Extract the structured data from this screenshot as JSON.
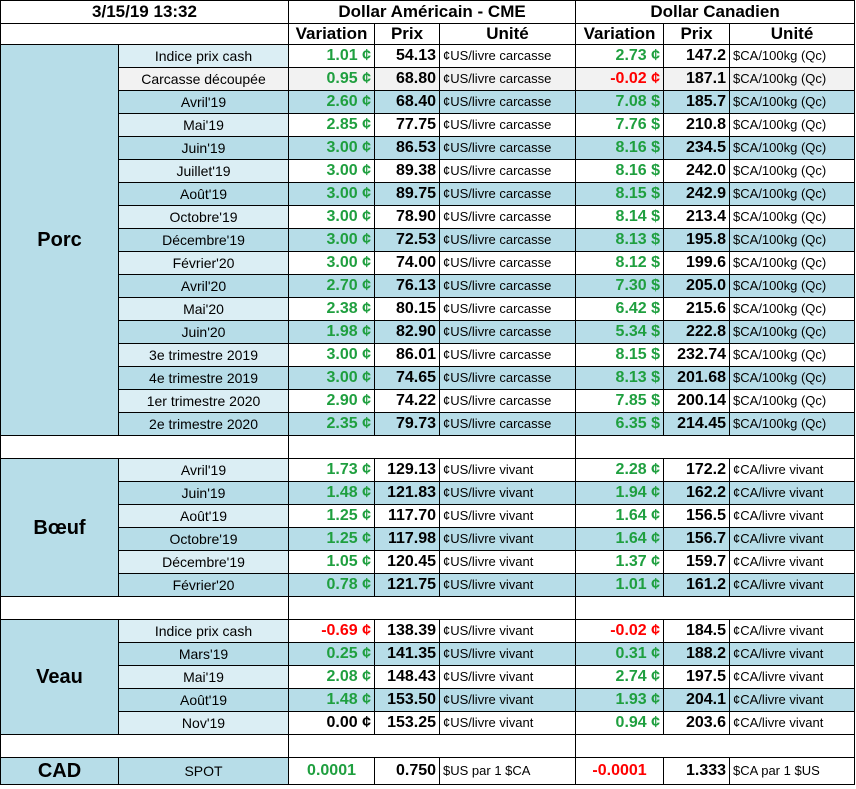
{
  "header": {
    "datetime": "3/15/19 13:32",
    "usd_title": "Dollar Américain - CME",
    "cad_title": "Dollar Canadien",
    "col_variation": "Variation",
    "col_prix": "Prix",
    "col_unite": "Unité"
  },
  "colors": {
    "positive": "#1f9f3f",
    "negative": "#ff0000",
    "row_dark": "#b7dde8",
    "row_light": "#ffffff"
  },
  "groups": [
    {
      "name": "Porc",
      "rows": [
        {
          "label": "Indice prix cash",
          "usd_var": "1.01 ¢",
          "usd_prix": "54.13",
          "usd_unit": "¢US/livre carcasse",
          "cad_var": "2.73 ¢",
          "cad_prix": "147.2",
          "cad_unit": "$CA/100kg (Qc)",
          "usd_sign": "pos",
          "cad_sign": "pos",
          "shade": "light"
        },
        {
          "label": "Carcasse découpée",
          "usd_var": "0.95 ¢",
          "usd_prix": "68.80",
          "usd_unit": "¢US/livre carcasse",
          "cad_var": "-0.02 ¢",
          "cad_prix": "187.1",
          "cad_unit": "$CA/100kg (Qc)",
          "usd_sign": "pos",
          "cad_sign": "neg",
          "shade": "plain"
        },
        {
          "label": "Avril'19",
          "usd_var": "2.60 ¢",
          "usd_prix": "68.40",
          "usd_unit": "¢US/livre carcasse",
          "cad_var": "7.08 $",
          "cad_prix": "185.7",
          "cad_unit": "$CA/100kg (Qc)",
          "usd_sign": "pos",
          "cad_sign": "pos",
          "shade": "dark"
        },
        {
          "label": "Mai'19",
          "usd_var": "2.85 ¢",
          "usd_prix": "77.75",
          "usd_unit": "¢US/livre carcasse",
          "cad_var": "7.76 $",
          "cad_prix": "210.8",
          "cad_unit": "$CA/100kg (Qc)",
          "usd_sign": "pos",
          "cad_sign": "pos",
          "shade": "light"
        },
        {
          "label": "Juin'19",
          "usd_var": "3.00 ¢",
          "usd_prix": "86.53",
          "usd_unit": "¢US/livre carcasse",
          "cad_var": "8.16 $",
          "cad_prix": "234.5",
          "cad_unit": "$CA/100kg (Qc)",
          "usd_sign": "pos",
          "cad_sign": "pos",
          "shade": "dark"
        },
        {
          "label": "Juillet'19",
          "usd_var": "3.00 ¢",
          "usd_prix": "89.38",
          "usd_unit": "¢US/livre carcasse",
          "cad_var": "8.16 $",
          "cad_prix": "242.0",
          "cad_unit": "$CA/100kg (Qc)",
          "usd_sign": "pos",
          "cad_sign": "pos",
          "shade": "light"
        },
        {
          "label": "Août'19",
          "usd_var": "3.00 ¢",
          "usd_prix": "89.75",
          "usd_unit": "¢US/livre carcasse",
          "cad_var": "8.15 $",
          "cad_prix": "242.9",
          "cad_unit": "$CA/100kg (Qc)",
          "usd_sign": "pos",
          "cad_sign": "pos",
          "shade": "dark"
        },
        {
          "label": "Octobre'19",
          "usd_var": "3.00 ¢",
          "usd_prix": "78.90",
          "usd_unit": "¢US/livre carcasse",
          "cad_var": "8.14 $",
          "cad_prix": "213.4",
          "cad_unit": "$CA/100kg (Qc)",
          "usd_sign": "pos",
          "cad_sign": "pos",
          "shade": "light"
        },
        {
          "label": "Décembre'19",
          "usd_var": "3.00 ¢",
          "usd_prix": "72.53",
          "usd_unit": "¢US/livre carcasse",
          "cad_var": "8.13 $",
          "cad_prix": "195.8",
          "cad_unit": "$CA/100kg (Qc)",
          "usd_sign": "pos",
          "cad_sign": "pos",
          "shade": "dark"
        },
        {
          "label": "Février'20",
          "usd_var": "3.00 ¢",
          "usd_prix": "74.00",
          "usd_unit": "¢US/livre carcasse",
          "cad_var": "8.12 $",
          "cad_prix": "199.6",
          "cad_unit": "$CA/100kg (Qc)",
          "usd_sign": "pos",
          "cad_sign": "pos",
          "shade": "light"
        },
        {
          "label": "Avril'20",
          "usd_var": "2.70 ¢",
          "usd_prix": "76.13",
          "usd_unit": "¢US/livre carcasse",
          "cad_var": "7.30 $",
          "cad_prix": "205.0",
          "cad_unit": "$CA/100kg (Qc)",
          "usd_sign": "pos",
          "cad_sign": "pos",
          "shade": "dark"
        },
        {
          "label": "Mai'20",
          "usd_var": "2.38 ¢",
          "usd_prix": "80.15",
          "usd_unit": "¢US/livre carcasse",
          "cad_var": "6.42 $",
          "cad_prix": "215.6",
          "cad_unit": "$CA/100kg (Qc)",
          "usd_sign": "pos",
          "cad_sign": "pos",
          "shade": "light"
        },
        {
          "label": "Juin'20",
          "usd_var": "1.98 ¢",
          "usd_prix": "82.90",
          "usd_unit": "¢US/livre carcasse",
          "cad_var": "5.34 $",
          "cad_prix": "222.8",
          "cad_unit": "$CA/100kg (Qc)",
          "usd_sign": "pos",
          "cad_sign": "pos",
          "shade": "dark"
        },
        {
          "label": "3e trimestre 2019",
          "usd_var": "3.00 ¢",
          "usd_prix": "86.01",
          "usd_unit": "¢US/livre carcasse",
          "cad_var": "8.15 $",
          "cad_prix": "232.74",
          "cad_unit": "$CA/100kg (Qc)",
          "usd_sign": "pos",
          "cad_sign": "pos",
          "shade": "light"
        },
        {
          "label": "4e trimestre 2019",
          "usd_var": "3.00 ¢",
          "usd_prix": "74.65",
          "usd_unit": "¢US/livre carcasse",
          "cad_var": "8.13 $",
          "cad_prix": "201.68",
          "cad_unit": "$CA/100kg (Qc)",
          "usd_sign": "pos",
          "cad_sign": "pos",
          "shade": "dark"
        },
        {
          "label": "1er trimestre 2020",
          "usd_var": "2.90 ¢",
          "usd_prix": "74.22",
          "usd_unit": "¢US/livre carcasse",
          "cad_var": "7.85 $",
          "cad_prix": "200.14",
          "cad_unit": "$CA/100kg (Qc)",
          "usd_sign": "pos",
          "cad_sign": "pos",
          "shade": "light"
        },
        {
          "label": "2e trimestre 2020",
          "usd_var": "2.35 ¢",
          "usd_prix": "79.73",
          "usd_unit": "¢US/livre carcasse",
          "cad_var": "6.35 $",
          "cad_prix": "214.45",
          "cad_unit": "$CA/100kg (Qc)",
          "usd_sign": "pos",
          "cad_sign": "pos",
          "shade": "dark"
        }
      ]
    },
    {
      "name": "Bœuf",
      "rows": [
        {
          "label": "Avril'19",
          "usd_var": "1.73 ¢",
          "usd_prix": "129.13",
          "usd_unit": "¢US/livre vivant",
          "cad_var": "2.28 ¢",
          "cad_prix": "172.2",
          "cad_unit": "¢CA/livre vivant",
          "usd_sign": "pos",
          "cad_sign": "pos",
          "shade": "light"
        },
        {
          "label": "Juin'19",
          "usd_var": "1.48 ¢",
          "usd_prix": "121.83",
          "usd_unit": "¢US/livre vivant",
          "cad_var": "1.94 ¢",
          "cad_prix": "162.2",
          "cad_unit": "¢CA/livre vivant",
          "usd_sign": "pos",
          "cad_sign": "pos",
          "shade": "dark"
        },
        {
          "label": "Août'19",
          "usd_var": "1.25 ¢",
          "usd_prix": "117.70",
          "usd_unit": "¢US/livre vivant",
          "cad_var": "1.64 ¢",
          "cad_prix": "156.5",
          "cad_unit": "¢CA/livre vivant",
          "usd_sign": "pos",
          "cad_sign": "pos",
          "shade": "light"
        },
        {
          "label": "Octobre'19",
          "usd_var": "1.25 ¢",
          "usd_prix": "117.98",
          "usd_unit": "¢US/livre vivant",
          "cad_var": "1.64 ¢",
          "cad_prix": "156.7",
          "cad_unit": "¢CA/livre vivant",
          "usd_sign": "pos",
          "cad_sign": "pos",
          "shade": "dark"
        },
        {
          "label": "Décembre'19",
          "usd_var": "1.05 ¢",
          "usd_prix": "120.45",
          "usd_unit": "¢US/livre vivant",
          "cad_var": "1.37 ¢",
          "cad_prix": "159.7",
          "cad_unit": "¢CA/livre vivant",
          "usd_sign": "pos",
          "cad_sign": "pos",
          "shade": "light"
        },
        {
          "label": "Février'20",
          "usd_var": "0.78 ¢",
          "usd_prix": "121.75",
          "usd_unit": "¢US/livre vivant",
          "cad_var": "1.01 ¢",
          "cad_prix": "161.2",
          "cad_unit": "¢CA/livre vivant",
          "usd_sign": "pos",
          "cad_sign": "pos",
          "shade": "dark"
        }
      ]
    },
    {
      "name": "Veau",
      "rows": [
        {
          "label": "Indice prix cash",
          "usd_var": "-0.69 ¢",
          "usd_prix": "138.39",
          "usd_unit": "¢US/livre vivant",
          "cad_var": "-0.02 ¢",
          "cad_prix": "184.5",
          "cad_unit": "¢CA/livre vivant",
          "usd_sign": "neg",
          "cad_sign": "neg",
          "shade": "light"
        },
        {
          "label": "Mars'19",
          "usd_var": "0.25 ¢",
          "usd_prix": "141.35",
          "usd_unit": "¢US/livre vivant",
          "cad_var": "0.31 ¢",
          "cad_prix": "188.2",
          "cad_unit": "¢CA/livre vivant",
          "usd_sign": "pos",
          "cad_sign": "pos",
          "shade": "dark"
        },
        {
          "label": "Mai'19",
          "usd_var": "2.08 ¢",
          "usd_prix": "148.43",
          "usd_unit": "¢US/livre vivant",
          "cad_var": "2.74 ¢",
          "cad_prix": "197.5",
          "cad_unit": "¢CA/livre vivant",
          "usd_sign": "pos",
          "cad_sign": "pos",
          "shade": "light"
        },
        {
          "label": "Août'19",
          "usd_var": "1.48 ¢",
          "usd_prix": "153.50",
          "usd_unit": "¢US/livre vivant",
          "cad_var": "1.93 ¢",
          "cad_prix": "204.1",
          "cad_unit": "¢CA/livre vivant",
          "usd_sign": "pos",
          "cad_sign": "pos",
          "shade": "dark"
        },
        {
          "label": "Nov'19",
          "usd_var": "0.00 ¢",
          "usd_prix": "153.25",
          "usd_unit": "¢US/livre vivant",
          "cad_var": "0.94 ¢",
          "cad_prix": "203.6",
          "cad_unit": "¢CA/livre vivant",
          "usd_sign": "zero",
          "cad_sign": "pos",
          "shade": "light"
        }
      ]
    }
  ],
  "cad": {
    "name": "CAD",
    "label": "SPOT",
    "usd_var": "0.0001",
    "usd_prix": "0.750",
    "usd_unit": "$US par 1 $CA",
    "cad_var": "-0.0001",
    "cad_prix": "1.333",
    "cad_unit": "$CA par 1 $US"
  }
}
